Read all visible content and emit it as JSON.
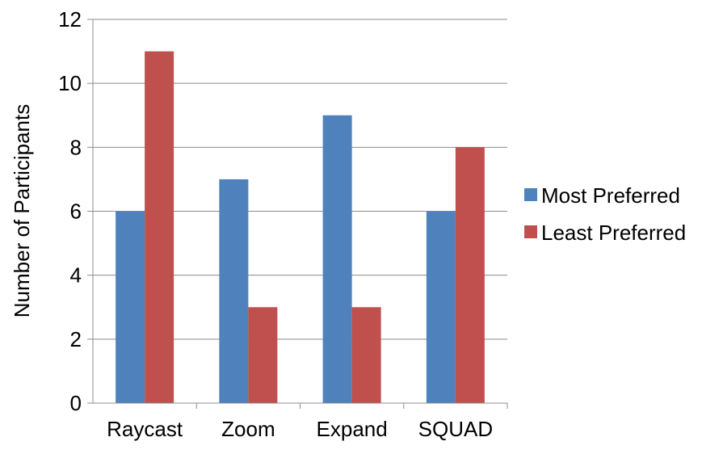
{
  "chart_data": {
    "type": "bar",
    "title": "",
    "xlabel": "",
    "ylabel": "Number of Participants",
    "categories": [
      "Raycast",
      "Zoom",
      "Expand",
      "SQUAD"
    ],
    "series": [
      {
        "name": "Most Preferred",
        "values": [
          6,
          7,
          9,
          6
        ],
        "color": "#4F81BD"
      },
      {
        "name": "Least Preferred",
        "values": [
          11,
          3,
          3,
          8
        ],
        "color": "#C0504D"
      }
    ],
    "ylim": [
      0,
      12
    ],
    "yticks": [
      0,
      2,
      4,
      6,
      8,
      10,
      12
    ],
    "grid": true,
    "legend_position": "right"
  }
}
